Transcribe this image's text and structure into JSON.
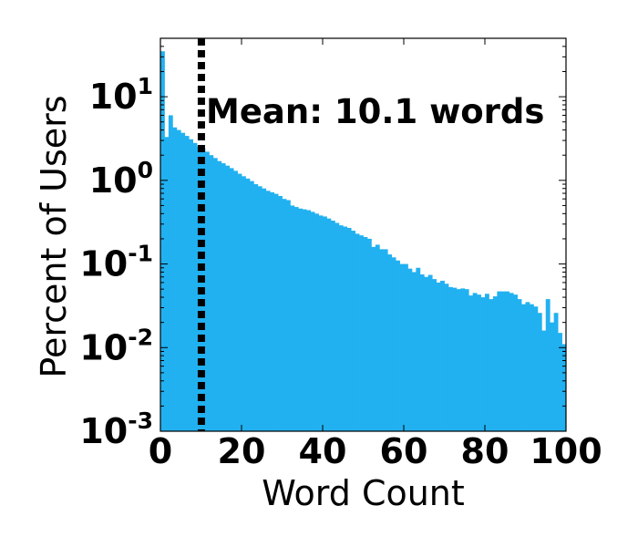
{
  "chart_data": {
    "type": "bar",
    "title": "",
    "xlabel": "Word Count",
    "ylabel": "Percent of Users",
    "xlim": [
      0,
      100
    ],
    "ylim": [
      0.001,
      50
    ],
    "yscale": "log",
    "grid": false,
    "legend": "none",
    "x_tick_labels": [
      "0",
      "20",
      "40",
      "60",
      "80",
      "100"
    ],
    "y_tick_labels": [
      {
        "base": "10",
        "exp": "-3"
      },
      {
        "base": "10",
        "exp": "-2"
      },
      {
        "base": "10",
        "exp": "-1"
      },
      {
        "base": "10",
        "exp": "0"
      },
      {
        "base": "10",
        "exp": "1"
      }
    ],
    "bar_color": "#21b1f1",
    "bin_width": 1,
    "x": [
      0,
      1,
      2,
      3,
      4,
      5,
      6,
      7,
      8,
      9,
      10,
      11,
      12,
      13,
      14,
      15,
      16,
      17,
      18,
      19,
      20,
      21,
      22,
      23,
      24,
      25,
      26,
      27,
      28,
      29,
      30,
      31,
      32,
      33,
      34,
      35,
      36,
      37,
      38,
      39,
      40,
      41,
      42,
      43,
      44,
      45,
      46,
      47,
      48,
      49,
      50,
      51,
      52,
      53,
      54,
      55,
      56,
      57,
      58,
      59,
      60,
      61,
      62,
      63,
      64,
      65,
      66,
      67,
      68,
      69,
      70,
      71,
      72,
      73,
      74,
      75,
      76,
      77,
      78,
      79,
      80,
      81,
      82,
      83,
      84,
      85,
      86,
      87,
      88,
      89,
      90,
      91,
      92,
      93,
      94,
      95,
      96,
      97,
      98,
      99
    ],
    "values": [
      35,
      3.3,
      6,
      4.3,
      4.0,
      3.7,
      3.4,
      3.1,
      2.8,
      2.55,
      2.4,
      2.2,
      2.0,
      1.85,
      1.7,
      1.6,
      1.5,
      1.4,
      1.3,
      1.2,
      1.12,
      1.05,
      0.98,
      0.9,
      0.85,
      0.8,
      0.75,
      0.72,
      0.69,
      0.65,
      0.6,
      0.58,
      0.5,
      0.48,
      0.46,
      0.45,
      0.44,
      0.42,
      0.4,
      0.38,
      0.37,
      0.35,
      0.33,
      0.31,
      0.29,
      0.28,
      0.27,
      0.25,
      0.23,
      0.22,
      0.21,
      0.2,
      0.16,
      0.17,
      0.15,
      0.15,
      0.13,
      0.12,
      0.11,
      0.1,
      0.1,
      0.088,
      0.08,
      0.09,
      0.075,
      0.07,
      0.074,
      0.066,
      0.06,
      0.063,
      0.058,
      0.053,
      0.052,
      0.05,
      0.051,
      0.05,
      0.042,
      0.045,
      0.043,
      0.04,
      0.044,
      0.038,
      0.041,
      0.047,
      0.047,
      0.047,
      0.045,
      0.043,
      0.038,
      0.033,
      0.035,
      0.033,
      0.031,
      0.026,
      0.016,
      0.038,
      0.02,
      0.026,
      0.015,
      0.011
    ],
    "vline": {
      "x": 10.1,
      "style": "dotted",
      "color": "#000000"
    },
    "annotation": "Mean: 10.1 words"
  }
}
